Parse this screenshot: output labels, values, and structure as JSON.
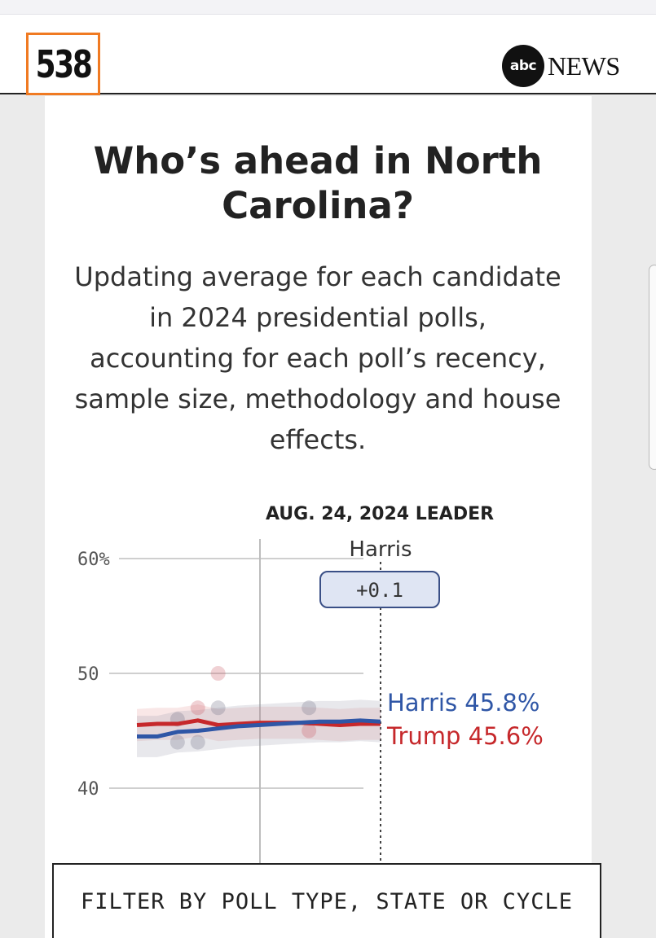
{
  "header": {
    "logo_text": "538",
    "abc_logo_text": "abc",
    "news_text": "NEWS"
  },
  "card": {
    "title": "Who’s ahead in North Carolina?",
    "subtitle": "Updating average for each candidate in 2024 presidential polls, accounting for each poll’s recency, sample size, methodology and house effects."
  },
  "chart_data": {
    "type": "line",
    "title": "Who’s ahead in North Carolina?",
    "y_ticks": [
      "60%",
      "50",
      "40"
    ],
    "y_tick_values": [
      60,
      50,
      40
    ],
    "ylim": [
      38,
      60
    ],
    "grid": true,
    "leader_date": "AUG. 24, 2024 LEADER",
    "leader_name": "Harris",
    "leader_margin": "+0.1",
    "x": [
      0,
      1,
      2,
      3,
      4,
      5,
      6,
      7,
      8,
      9,
      10,
      11,
      12
    ],
    "series": [
      {
        "name": "Trump",
        "color": "#c6282b",
        "end_label": "Trump 45.6%",
        "values": [
          45.5,
          45.6,
          45.6,
          45.9,
          45.5,
          45.6,
          45.7,
          45.7,
          45.7,
          45.6,
          45.5,
          45.6,
          45.6
        ],
        "band": 1.4
      },
      {
        "name": "Harris",
        "color": "#2f56a6",
        "end_label": "Harris 45.8%",
        "values": [
          44.5,
          44.5,
          44.9,
          45.0,
          45.2,
          45.4,
          45.5,
          45.6,
          45.7,
          45.8,
          45.8,
          45.9,
          45.8
        ],
        "band": 1.8
      }
    ],
    "poll_dots": [
      {
        "x": 2,
        "y": 46.0,
        "party": "Harris"
      },
      {
        "x": 2,
        "y": 44.0,
        "party": "Harris"
      },
      {
        "x": 3,
        "y": 44.0,
        "party": "Harris"
      },
      {
        "x": 3,
        "y": 47.0,
        "party": "Trump"
      },
      {
        "x": 4,
        "y": 50.0,
        "party": "Trump"
      },
      {
        "x": 4,
        "y": 47.0,
        "party": "Harris"
      },
      {
        "x": 10,
        "y": 47.0,
        "party": "Harris"
      },
      {
        "x": 10,
        "y": 45.0,
        "party": "Trump"
      }
    ]
  },
  "filter": {
    "label": "FILTER BY POLL TYPE, STATE OR CYCLE"
  }
}
